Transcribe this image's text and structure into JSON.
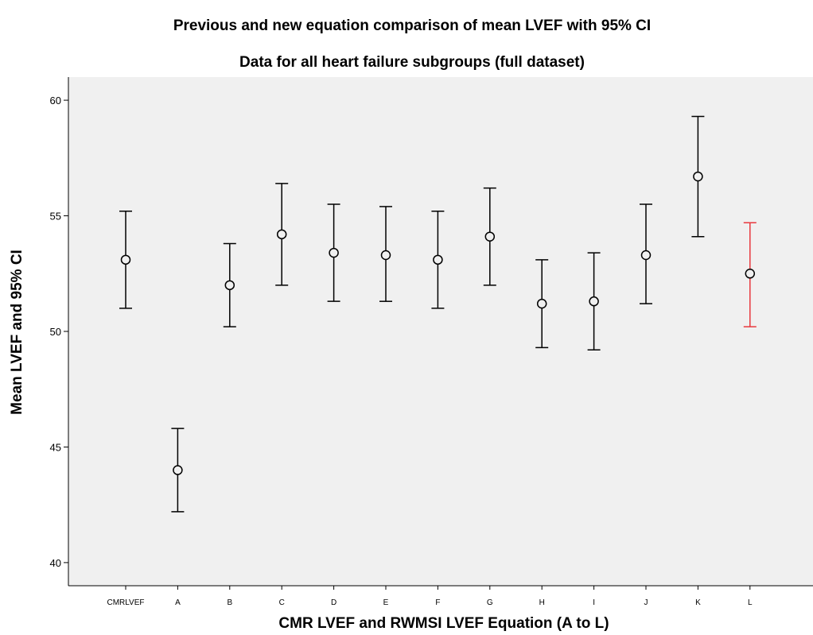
{
  "chart_data": {
    "type": "errorbar",
    "title": "Previous and new equation comparison of mean LVEF with 95% CI",
    "subtitle": "Data for all heart failure subgroups (full dataset)",
    "xlabel": "CMR LVEF and RWMSI LVEF Equation (A to L)",
    "ylabel": "Mean LVEF and 95% CI",
    "ylim": [
      39,
      61
    ],
    "yticks": [
      40,
      45,
      50,
      55,
      60
    ],
    "ytick_labels": [
      "40",
      "45",
      "50",
      "55",
      "60"
    ],
    "grid": false,
    "background": "#f0f0f0",
    "categories": [
      "CMRLVEF",
      "A",
      "B",
      "C",
      "D",
      "E",
      "F",
      "G",
      "H",
      "I",
      "J",
      "K",
      "L"
    ],
    "means": [
      53.1,
      44.0,
      52.0,
      54.2,
      53.4,
      53.3,
      53.1,
      54.1,
      51.2,
      51.3,
      53.3,
      56.7,
      52.5
    ],
    "lower": [
      51.0,
      42.2,
      50.2,
      52.0,
      51.3,
      51.3,
      51.0,
      52.0,
      49.3,
      49.2,
      51.2,
      54.1,
      50.2
    ],
    "upper": [
      55.2,
      45.8,
      53.8,
      56.4,
      55.5,
      55.4,
      55.2,
      56.2,
      53.1,
      53.4,
      55.5,
      59.3,
      54.7
    ],
    "colors": [
      "#000000",
      "#000000",
      "#000000",
      "#000000",
      "#000000",
      "#000000",
      "#000000",
      "#000000",
      "#000000",
      "#000000",
      "#000000",
      "#000000",
      "#e8383d"
    ]
  }
}
